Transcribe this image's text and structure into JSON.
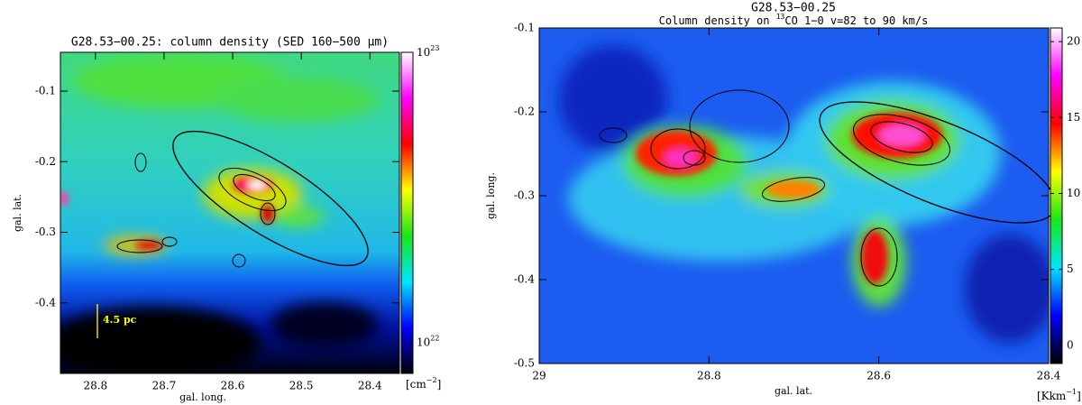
{
  "chart_data": [
    {
      "type": "heatmap",
      "title": "G28.53−00.25: column density (SED 160−500 μm)",
      "xlabel": "gal. long.",
      "ylabel": "gal. lat.",
      "xlim": [
        28.851,
        28.357
      ],
      "xticks": [
        28.8,
        28.7,
        28.6,
        28.5,
        28.4
      ],
      "ylim": [
        -0.5,
        -0.045
      ],
      "yticks": [
        -0.4,
        -0.3,
        -0.2,
        -0.1
      ],
      "colorbar": {
        "scale": "log",
        "lim": [
          7.8e+21,
          1e+23
        ],
        "ticks": [
          {
            "value": 1e+22,
            "label": "10",
            "sup": "22"
          },
          {
            "value": 1e+23,
            "label": "10",
            "sup": "23"
          }
        ],
        "unit": {
          "label": "[cm",
          "sup": "−2",
          "suffix": "]"
        },
        "colormap": [
          "#000000",
          "#0000ff",
          "#00e5ff",
          "#19e619",
          "#ffff00",
          "#ff0000",
          "#ff00ff",
          "#ffffff"
        ]
      },
      "annotation": {
        "text": "4.5 pc",
        "color": "#ffff00"
      }
    },
    {
      "type": "heatmap",
      "title": "G28.53−00.25",
      "subtitle": {
        "prefix": "Column density on ",
        "sup": "13",
        "suffix": "CO 1−0 v=82 to 90 km/s"
      },
      "xlabel": "gal. lat.",
      "ylabel": "gal. long.",
      "xlim": [
        29,
        28.4
      ],
      "xticks": [
        29,
        28.8,
        28.6,
        28.4
      ],
      "ylim": [
        -0.5,
        -0.1
      ],
      "yticks": [
        -0.5,
        -0.4,
        -0.3,
        -0.2,
        -0.1
      ],
      "colorbar": {
        "scale": "linear",
        "lim": [
          -1.2,
          20.9
        ],
        "ticks": [
          0,
          5,
          10,
          15,
          20
        ],
        "unit": {
          "label": "[Kkm",
          "sup": "−1",
          "suffix": "]"
        },
        "colormap": [
          "#000000",
          "#0000ff",
          "#00e5ff",
          "#19e619",
          "#ffff00",
          "#ff0000",
          "#ff00ff",
          "#ffffff"
        ]
      }
    }
  ]
}
